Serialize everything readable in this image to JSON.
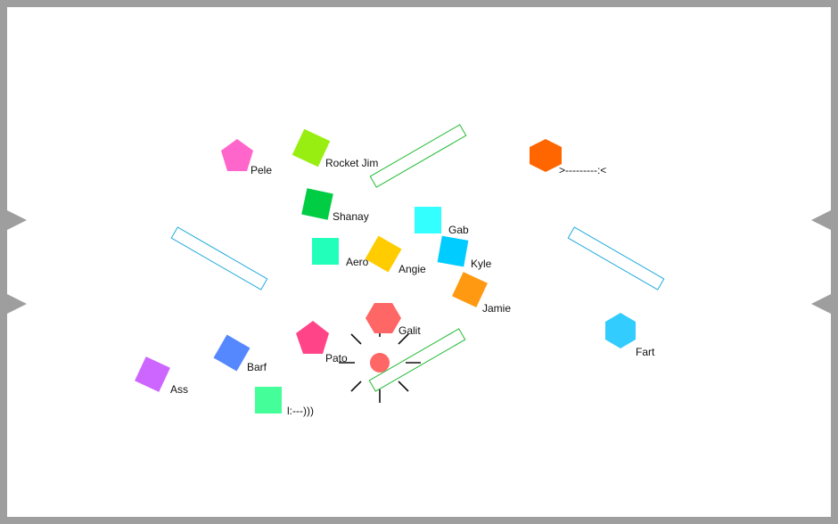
{
  "arena": {
    "border_color": "#9e9e9e",
    "background": "#ffffff"
  },
  "players": [
    {
      "name": "Pele",
      "shape": "pentagon",
      "color": "#ff66cc"
    },
    {
      "name": "Rocket Jim",
      "shape": "square",
      "color": "#99ee11"
    },
    {
      "name": "Shanay",
      "shape": "square",
      "color": "#00cc44"
    },
    {
      "name": "Gab",
      "shape": "square",
      "color": "#33ffff"
    },
    {
      "name": "Aero",
      "shape": "square",
      "color": "#22ffbb"
    },
    {
      "name": "Angie",
      "shape": "square",
      "color": "#ffcc00"
    },
    {
      "name": "Kyle",
      "shape": "square",
      "color": "#00ccff"
    },
    {
      "name": "Jamie",
      "shape": "square",
      "color": "#ff9911"
    },
    {
      "name": ">---------:<",
      "shape": "hexagon",
      "color": "#ff6600"
    },
    {
      "name": "Galit",
      "shape": "hexagon",
      "color": "#ff6666"
    },
    {
      "name": "Pato",
      "shape": "pentagon",
      "color": "#ff4488"
    },
    {
      "name": "Barf",
      "shape": "square",
      "color": "#5588ff"
    },
    {
      "name": "Ass",
      "shape": "square",
      "color": "#cc66ff"
    },
    {
      "name": "l:---)))",
      "shape": "square",
      "color": "#44ff99"
    },
    {
      "name": "Fart",
      "shape": "hexagon",
      "color": "#33ccff"
    }
  ],
  "paddles": [
    {
      "id": "paddle-top-center",
      "color": "#22bb33"
    },
    {
      "id": "paddle-left",
      "color": "#22aadd"
    },
    {
      "id": "paddle-right",
      "color": "#22aadd"
    },
    {
      "id": "paddle-bottom-center",
      "color": "#22bb33"
    }
  ],
  "ball": {
    "color": "#ff6666",
    "state": "burst"
  }
}
